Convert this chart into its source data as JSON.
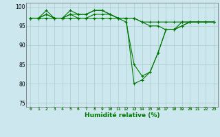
{
  "title": "",
  "xlabel": "Humidité relative (%)",
  "ylabel": "",
  "background_color": "#cce8ee",
  "grid_color": "#aacccc",
  "line_color": "#007700",
  "xlim_min": -0.5,
  "xlim_max": 23.5,
  "ylim_min": 74,
  "ylim_max": 101,
  "yticks": [
    75,
    80,
    85,
    90,
    95,
    100
  ],
  "xticks": [
    0,
    1,
    2,
    3,
    4,
    5,
    6,
    7,
    8,
    9,
    10,
    11,
    12,
    13,
    14,
    15,
    16,
    17,
    18,
    19,
    20,
    21,
    22,
    23
  ],
  "series": [
    [
      97,
      97,
      98,
      97,
      97,
      98,
      97,
      97,
      98,
      98,
      98,
      97,
      97,
      80,
      81,
      83,
      88,
      94,
      94,
      95,
      96,
      96,
      96,
      96
    ],
    [
      97,
      97,
      99,
      97,
      97,
      99,
      98,
      98,
      99,
      99,
      98,
      97,
      96,
      85,
      82,
      83,
      88,
      94,
      94,
      96,
      96,
      96,
      96,
      96
    ],
    [
      97,
      97,
      98,
      97,
      97,
      98,
      98,
      98,
      99,
      99,
      98,
      97,
      97,
      97,
      96,
      95,
      95,
      94,
      94,
      95,
      96,
      96,
      96,
      96
    ],
    [
      97,
      97,
      97,
      97,
      97,
      97,
      97,
      97,
      97,
      97,
      97,
      97,
      97,
      97,
      96,
      96,
      96,
      96,
      96,
      96,
      96,
      96,
      96,
      96
    ]
  ]
}
